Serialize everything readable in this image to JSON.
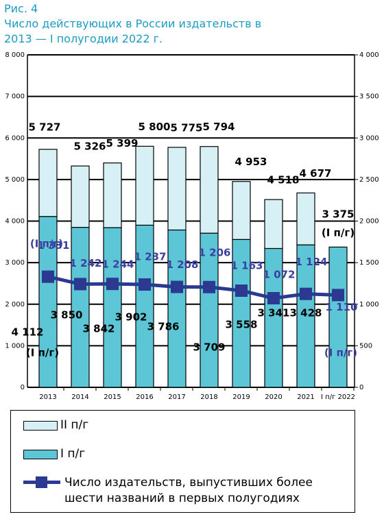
{
  "chart_data": {
    "type": "stacked-bar-line",
    "figure_label": "Рис. 4",
    "title": "Число действующих в России издательств в 2013 — I полугодии 2022 г.",
    "categories": [
      "2013",
      "2014",
      "2015",
      "2016",
      "2017",
      "2018",
      "2019",
      "2020",
      "2021",
      "I п/г 2022"
    ],
    "series": [
      {
        "name": "I п/г",
        "color": "#5cc6d6",
        "values": [
          4112,
          3850,
          3842,
          3902,
          3786,
          3709,
          3558,
          3341,
          3428,
          3375
        ],
        "value_labels": [
          "4 112",
          "3 850",
          "3 842",
          "3 902",
          "3 786",
          "3 709",
          "3 558",
          "3 341",
          "3 428",
          "3 375"
        ]
      },
      {
        "name": "II п/г",
        "color": "#d6f0f6",
        "values": [
          1615,
          1476,
          1557,
          1898,
          1989,
          2085,
          1395,
          1177,
          1249,
          null
        ]
      },
      {
        "name": "Число издательств, выпустивших более шести названий в первых полугодиях",
        "color": "#2b3990",
        "axis": "y2",
        "values": [
          1331,
          1242,
          1244,
          1237,
          1208,
          1206,
          1163,
          1072,
          1124,
          1110
        ],
        "value_labels": [
          "1 331",
          "1 242",
          "1 244",
          "1 237",
          "1 208",
          "1 206",
          "1 163",
          "1 072",
          "1 124",
          "1 110"
        ]
      }
    ],
    "totals": [
      5727,
      5326,
      5399,
      5800,
      5775,
      5794,
      4953,
      4518,
      4677
    ],
    "total_labels": [
      "5 727",
      "5 326",
      "5 399",
      "5 800",
      "5 775",
      "5 794",
      "4 953",
      "4 518",
      "4 677"
    ],
    "annotations": [
      "(I п/г)",
      "(I п/г)",
      "(I п/г)",
      "(I п/г)"
    ],
    "ylim": [
      0,
      8000
    ],
    "yticks": [
      0,
      {
        "value": 1000,
        "label": "1 000"
      },
      {
        "value": 2000,
        "label": "2 000"
      },
      {
        "value": 3000,
        "label": "3 000"
      },
      {
        "value": 4000,
        "label": "4 000"
      },
      {
        "value": 5000,
        "label": "5 000"
      },
      {
        "value": 6000,
        "label": "6 000"
      },
      {
        "value": 7000,
        "label": "7 000"
      },
      {
        "value": 8000,
        "label": "8 000"
      }
    ],
    "y2lim": [
      0,
      4000
    ],
    "y2ticks": [
      0,
      500,
      {
        "value": 1000,
        "label": "1 000"
      },
      {
        "value": 1500,
        "label": "1 500"
      },
      {
        "value": 2000,
        "label": "2 000"
      },
      {
        "value": 2500,
        "label": "2 500"
      },
      {
        "value": 3000,
        "label": "3 000"
      },
      {
        "value": 3500,
        "label": "3 500"
      },
      {
        "value": 4000,
        "label": "4 000"
      }
    ],
    "grid": true
  }
}
